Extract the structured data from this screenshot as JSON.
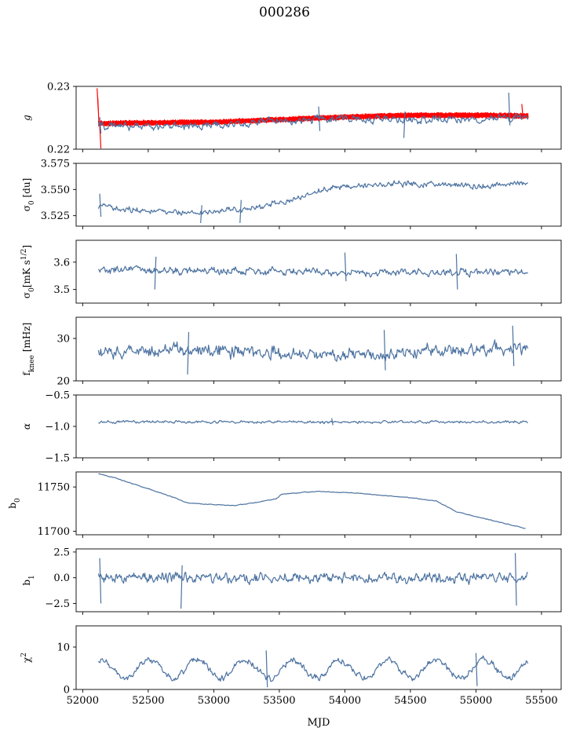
{
  "title": "000286",
  "chart_data": [
    {
      "type": "line",
      "ylabel": "g",
      "ylabel_html": "g",
      "ylim": [
        0.22,
        0.23
      ],
      "yticks": [
        0.22,
        0.23
      ],
      "ytick_labels": [
        "0.22",
        "0.23"
      ],
      "series": [
        {
          "color": "#ff0000",
          "style": "dense_band",
          "baseline": [
            [
              52120,
              0.2241
            ],
            [
              52500,
              0.2242
            ],
            [
              53000,
              0.2243
            ],
            [
              53500,
              0.2247
            ],
            [
              54000,
              0.2251
            ],
            [
              54500,
              0.2254
            ],
            [
              55000,
              0.2254
            ],
            [
              55400,
              0.2253
            ]
          ],
          "halfwidth": 0.0005,
          "spikes": [
            [
              52110,
              0.2297,
              0.2262
            ],
            [
              52115,
              0.2282,
              0.2241
            ],
            [
              52130,
              0.2238,
              0.2201
            ],
            [
              55350,
              0.2272,
              0.2248
            ]
          ]
        },
        {
          "color": "#4c72a0",
          "style": "noisy",
          "baseline": [
            [
              52120,
              0.2238
            ],
            [
              52500,
              0.2236
            ],
            [
              53000,
              0.2238
            ],
            [
              53500,
              0.2245
            ],
            [
              54000,
              0.2249
            ],
            [
              54500,
              0.2247
            ],
            [
              55000,
              0.2247
            ],
            [
              55400,
              0.2252
            ]
          ],
          "amplitude": 0.0009,
          "spikes": [
            [
              52130,
              0.2251,
              0.2225
            ],
            [
              53800,
              0.2268,
              0.2229
            ],
            [
              54450,
              0.2218,
              0.226
            ],
            [
              55250,
              0.229,
              0.2238
            ]
          ]
        }
      ]
    },
    {
      "type": "line",
      "ylabel": "σ0 [du]",
      "ylim": [
        3.515,
        3.575
      ],
      "yticks": [
        3.525,
        3.55,
        3.575
      ],
      "ytick_labels": [
        "3.525",
        "3.550",
        "3.575"
      ],
      "series": [
        {
          "color": "#4c72a0",
          "style": "noisy",
          "baseline": [
            [
              52120,
              3.534
            ],
            [
              52500,
              3.53
            ],
            [
              52800,
              3.528
            ],
            [
              53000,
              3.529
            ],
            [
              53300,
              3.533
            ],
            [
              53600,
              3.54
            ],
            [
              53900,
              3.552
            ],
            [
              54200,
              3.554
            ],
            [
              54500,
              3.556
            ],
            [
              54800,
              3.555
            ],
            [
              55100,
              3.553
            ],
            [
              55400,
              3.556
            ]
          ],
          "amplitude": 0.004,
          "spikes": [
            [
              52130,
              3.546,
              3.524
            ],
            [
              52900,
              3.518,
              3.535
            ],
            [
              53200,
              3.518,
              3.54
            ]
          ]
        }
      ]
    },
    {
      "type": "line",
      "ylabel": "σ0[mK s^1/2]",
      "ylim": [
        3.45,
        3.68
      ],
      "yticks": [
        3.5,
        3.6
      ],
      "ytick_labels": [
        "3.5",
        "3.6"
      ],
      "series": [
        {
          "color": "#4c72a0",
          "style": "noisy",
          "baseline": [
            [
              52120,
              3.57
            ],
            [
              55400,
              3.56
            ]
          ],
          "amplitude": 0.02,
          "spikes": [
            [
              52550,
              3.5,
              3.62
            ],
            [
              54000,
              3.635,
              3.53
            ],
            [
              54850,
              3.63,
              3.5
            ]
          ]
        }
      ]
    },
    {
      "type": "line",
      "ylabel": "fknee [mHz]",
      "ylim": [
        20,
        35
      ],
      "yticks": [
        20,
        30
      ],
      "ytick_labels": [
        "20",
        "30"
      ],
      "series": [
        {
          "color": "#4c72a0",
          "style": "noisy",
          "baseline": [
            [
              52120,
              26.5
            ],
            [
              52800,
              27.5
            ],
            [
              53300,
              27
            ],
            [
              53800,
              26
            ],
            [
              54400,
              26.5
            ],
            [
              55000,
              27.5
            ],
            [
              55400,
              27.5
            ]
          ],
          "amplitude": 2.2,
          "spikes": [
            [
              52800,
              21.5,
              31.5
            ],
            [
              54300,
              32,
              22.5
            ],
            [
              55280,
              33,
              23.5
            ]
          ]
        }
      ]
    },
    {
      "type": "line",
      "ylabel": "α",
      "ylim": [
        -1.5,
        -0.5
      ],
      "yticks": [
        -1.5,
        -1.0,
        -0.5
      ],
      "ytick_labels": [
        "−1.5",
        "−1.0",
        "−0.5"
      ],
      "series": [
        {
          "color": "#4c72a0",
          "style": "noisy",
          "baseline": [
            [
              52120,
              -0.93
            ],
            [
              55400,
              -0.93
            ]
          ],
          "amplitude": 0.03,
          "spikes": [
            [
              53900,
              -0.87,
              -0.98
            ]
          ]
        }
      ]
    },
    {
      "type": "line",
      "ylabel": "b0",
      "ylim": [
        11696,
        11767
      ],
      "yticks": [
        11700,
        11750
      ],
      "ytick_labels": [
        "11700",
        "11750"
      ],
      "series": [
        {
          "color": "#4c72a0",
          "style": "noisy",
          "baseline": [
            [
              52120,
              11765
            ],
            [
              52250,
              11760
            ],
            [
              52500,
              11748
            ],
            [
              52700,
              11738
            ],
            [
              52800,
              11732
            ],
            [
              53000,
              11730
            ],
            [
              53150,
              11729
            ],
            [
              53350,
              11733
            ],
            [
              53480,
              11737
            ],
            [
              53520,
              11742
            ],
            [
              53800,
              11745
            ],
            [
              54100,
              11743
            ],
            [
              54500,
              11738
            ],
            [
              54700,
              11734
            ],
            [
              54850,
              11722
            ],
            [
              55100,
              11713
            ],
            [
              55380,
              11703
            ]
          ],
          "amplitude": 0.6,
          "spikes": []
        }
      ]
    },
    {
      "type": "line",
      "ylabel": "b1",
      "ylim": [
        -3.3,
        2.8
      ],
      "yticks": [
        -2.5,
        0.0,
        2.5
      ],
      "ytick_labels": [
        "−2.5",
        "0.0",
        "2.5"
      ],
      "series": [
        {
          "color": "#4c72a0",
          "style": "noisy",
          "baseline": [
            [
              52120,
              0
            ],
            [
              55400,
              0
            ]
          ],
          "amplitude": 0.75,
          "spikes": [
            [
              52130,
              1.9,
              -2.5
            ],
            [
              52750,
              -3.0,
              1.2
            ],
            [
              55300,
              2.4,
              -2.7
            ]
          ]
        }
      ]
    },
    {
      "type": "line",
      "ylabel": "χ2",
      "ylim": [
        0,
        15
      ],
      "yticks": [
        0,
        10
      ],
      "ytick_labels": [
        "0",
        "10"
      ],
      "series": [
        {
          "color": "#4c72a0",
          "style": "seasonal",
          "baseline": [
            [
              52120,
              4.8
            ],
            [
              55400,
              4.8
            ]
          ],
          "amplitude": 1.1,
          "seasonal_amplitude": 2.2,
          "period": 365,
          "spikes": [
            [
              53400,
              9.2,
              0.5
            ],
            [
              55000,
              8.6,
              0.8
            ]
          ]
        }
      ]
    }
  ],
  "xaxis": {
    "label": "MJD",
    "xlim": [
      51950,
      55650
    ],
    "ticks": [
      52000,
      52500,
      53000,
      53500,
      54000,
      54500,
      55000,
      55500
    ],
    "tick_labels": [
      "52000",
      "52500",
      "53000",
      "53500",
      "54000",
      "54500",
      "55000",
      "55500"
    ]
  }
}
